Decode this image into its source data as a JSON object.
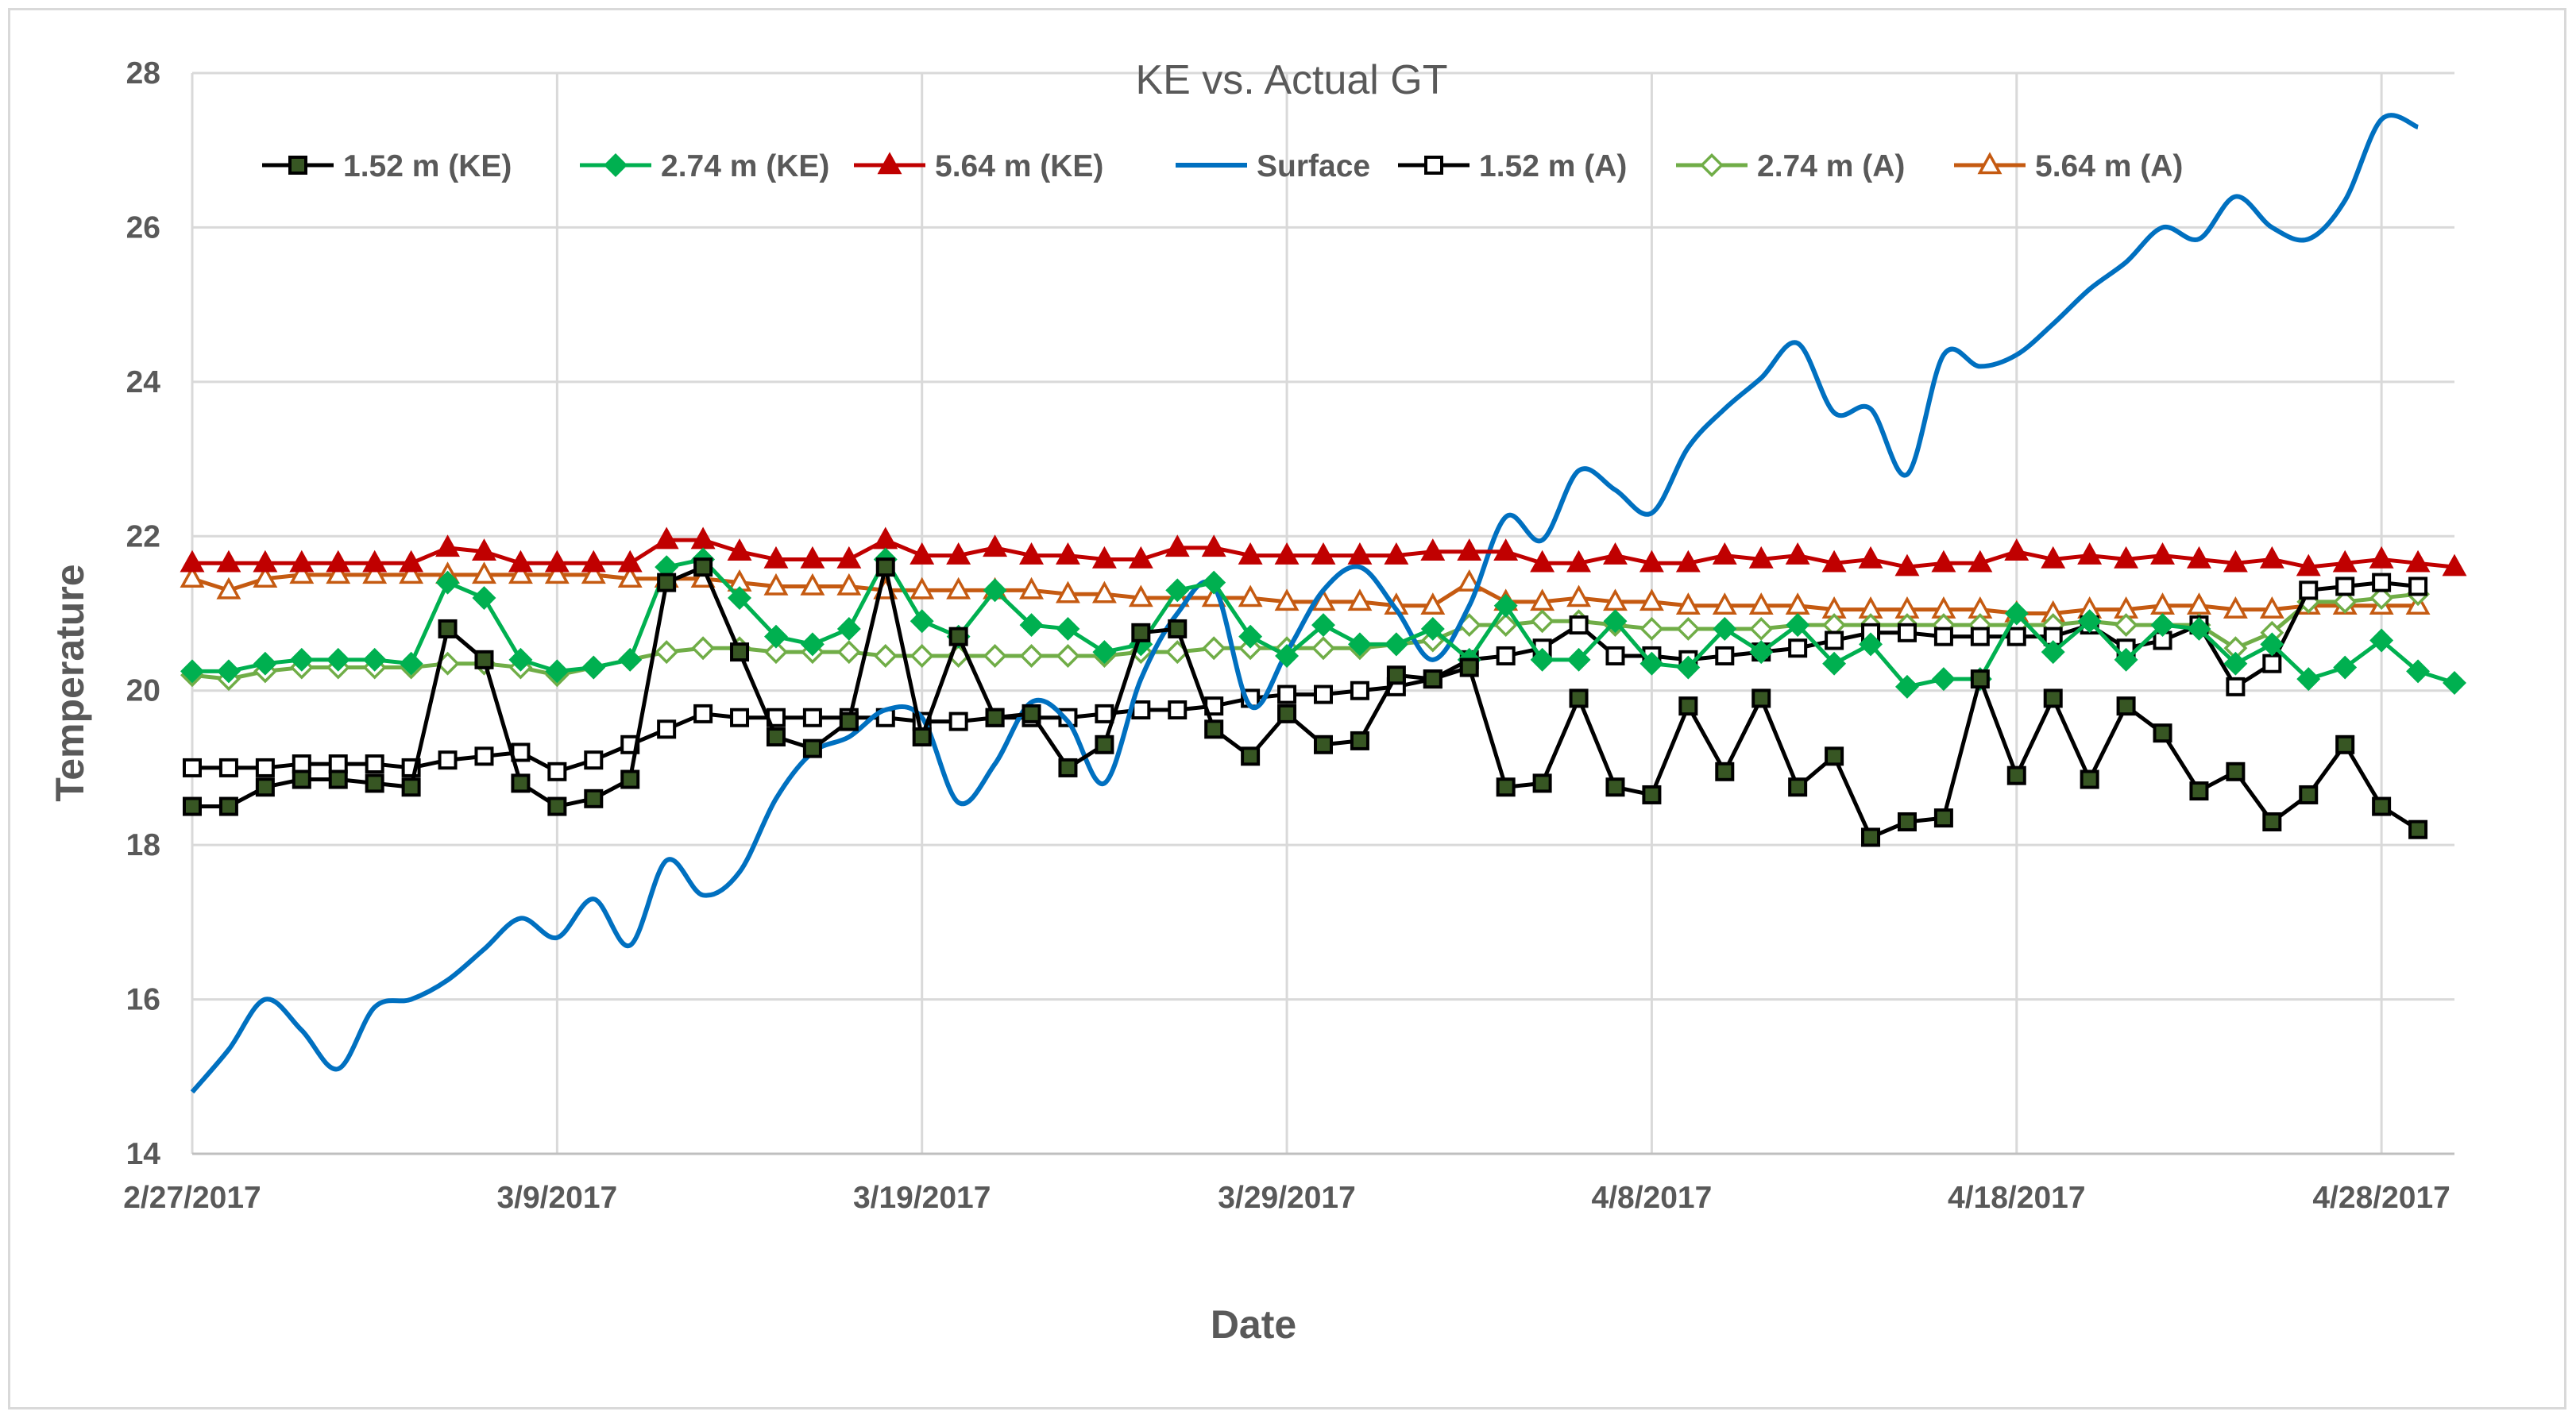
{
  "chart_data": {
    "type": "line",
    "title": "KE vs. Actual GT",
    "xlabel": "Date",
    "ylabel": "Temperature",
    "ylim": [
      14,
      28
    ],
    "xlim": [
      0,
      62
    ],
    "yticks": [
      "14",
      "16",
      "18",
      "20",
      "22",
      "24",
      "26",
      "28"
    ],
    "yticks_values": [
      14,
      16,
      18,
      20,
      22,
      24,
      26,
      28
    ],
    "xticks": [
      "2/27/2017",
      "3/9/2017",
      "3/19/2017",
      "3/29/2017",
      "4/8/2017",
      "4/18/2017",
      "4/28/2017"
    ],
    "xticks_values": [
      0,
      10,
      20,
      30,
      40,
      50,
      60
    ],
    "grid": true,
    "legend_position": "top",
    "colors": {
      "black": "#000000",
      "green": "#00b050",
      "red": "#c00000",
      "blue": "#0070c0",
      "light_green": "#70ad47",
      "brown": "#c55a11",
      "grid": "#d9d9d9",
      "text": "#595959",
      "marker_fill_black": "#375623"
    },
    "series": [
      {
        "name": "1.52 m (KE)",
        "marker": "square-filled",
        "color": "#000000",
        "values": [
          18.5,
          18.5,
          18.75,
          18.85,
          18.85,
          18.8,
          18.75,
          20.8,
          20.4,
          18.8,
          18.5,
          18.6,
          18.85,
          21.4,
          21.6,
          20.5,
          19.4,
          19.25,
          19.6,
          21.6,
          19.4,
          20.7,
          19.65,
          19.7,
          19.0,
          19.3,
          20.75,
          20.8,
          19.5,
          19.15,
          19.7,
          19.3,
          19.35,
          20.2,
          20.15,
          20.3,
          18.75,
          18.8,
          19.9,
          18.75,
          18.65,
          19.8,
          18.95,
          19.9,
          18.75,
          19.15,
          18.1,
          18.3,
          18.35,
          20.15,
          18.9,
          19.9,
          18.85,
          19.8,
          19.45,
          18.7,
          18.95,
          18.3,
          18.65,
          19.3,
          18.5,
          18.2
        ]
      },
      {
        "name": "2.74 m (KE)",
        "marker": "diamond-filled",
        "color": "#00b050",
        "values": [
          20.25,
          20.25,
          20.35,
          20.4,
          20.4,
          20.4,
          20.35,
          21.4,
          21.2,
          20.4,
          20.25,
          20.3,
          20.4,
          21.6,
          21.7,
          21.2,
          20.7,
          20.6,
          20.8,
          21.7,
          20.9,
          20.7,
          21.3,
          20.85,
          20.8,
          20.5,
          20.6,
          21.3,
          21.4,
          20.7,
          20.45,
          20.85,
          20.6,
          20.6,
          20.8,
          20.4,
          21.1,
          20.4,
          20.4,
          20.9,
          20.35,
          20.3,
          20.8,
          20.5,
          20.85,
          20.35,
          20.6,
          20.05,
          20.15,
          20.15,
          21.0,
          20.5,
          20.9,
          20.4,
          20.85,
          20.8,
          20.35,
          20.6,
          20.15,
          20.3,
          20.65,
          20.25,
          20.1
        ]
      },
      {
        "name": "5.64 m (KE)",
        "marker": "triangle-filled",
        "color": "#c00000",
        "values": [
          21.65,
          21.65,
          21.65,
          21.65,
          21.65,
          21.65,
          21.65,
          21.85,
          21.8,
          21.65,
          21.65,
          21.65,
          21.65,
          21.95,
          21.95,
          21.8,
          21.7,
          21.7,
          21.7,
          21.95,
          21.75,
          21.75,
          21.85,
          21.75,
          21.75,
          21.7,
          21.7,
          21.85,
          21.85,
          21.75,
          21.75,
          21.75,
          21.75,
          21.75,
          21.8,
          21.8,
          21.8,
          21.65,
          21.65,
          21.75,
          21.65,
          21.65,
          21.75,
          21.7,
          21.75,
          21.65,
          21.7,
          21.6,
          21.65,
          21.65,
          21.8,
          21.7,
          21.75,
          21.7,
          21.75,
          21.7,
          21.65,
          21.7,
          21.6,
          21.65,
          21.7,
          21.65,
          21.6
        ]
      },
      {
        "name": "Surface",
        "marker": "none",
        "color": "#0070c0",
        "values": [
          14.8,
          15.35,
          16.0,
          15.6,
          15.1,
          15.9,
          16.0,
          16.25,
          16.65,
          17.05,
          16.8,
          17.3,
          16.7,
          17.8,
          17.35,
          17.65,
          18.6,
          19.2,
          19.4,
          19.75,
          19.65,
          18.55,
          19.05,
          19.85,
          19.6,
          18.8,
          20.15,
          21.0,
          21.35,
          19.8,
          20.5,
          21.3,
          21.6,
          21.05,
          20.4,
          21.1,
          22.25,
          21.95,
          22.85,
          22.6,
          22.3,
          23.15,
          23.65,
          24.05,
          24.5,
          23.6,
          23.65,
          22.8,
          24.35,
          24.2,
          24.35,
          24.75,
          25.2,
          25.55,
          26.0,
          25.85,
          26.4,
          26.0,
          25.85,
          26.35,
          27.4,
          27.3
        ]
      },
      {
        "name": "1.52 m (A)",
        "marker": "square-open",
        "color": "#000000",
        "values": [
          19.0,
          19.0,
          19.0,
          19.05,
          19.05,
          19.05,
          19.0,
          19.1,
          19.15,
          19.2,
          18.95,
          19.1,
          19.3,
          19.5,
          19.7,
          19.65,
          19.65,
          19.65,
          19.65,
          19.65,
          19.6,
          19.6,
          19.65,
          19.65,
          19.65,
          19.7,
          19.75,
          19.75,
          19.8,
          19.9,
          19.95,
          19.95,
          20.0,
          20.05,
          20.15,
          20.4,
          20.45,
          20.55,
          20.85,
          20.45,
          20.45,
          20.4,
          20.45,
          20.5,
          20.55,
          20.65,
          20.75,
          20.75,
          20.7,
          20.7,
          20.7,
          20.7,
          20.85,
          20.55,
          20.65,
          20.85,
          20.05,
          20.35,
          21.3,
          21.35,
          21.4,
          21.35
        ]
      },
      {
        "name": "2.74 m (A)",
        "marker": "diamond-open",
        "color": "#70ad47",
        "values": [
          20.2,
          20.15,
          20.25,
          20.3,
          20.3,
          20.3,
          20.3,
          20.35,
          20.35,
          20.3,
          20.2,
          20.3,
          20.4,
          20.5,
          20.55,
          20.55,
          20.5,
          20.5,
          20.5,
          20.45,
          20.45,
          20.45,
          20.45,
          20.45,
          20.45,
          20.45,
          20.5,
          20.5,
          20.55,
          20.55,
          20.55,
          20.55,
          20.55,
          20.6,
          20.65,
          20.85,
          20.85,
          20.9,
          20.9,
          20.85,
          20.8,
          20.8,
          20.8,
          20.8,
          20.85,
          20.85,
          20.85,
          20.85,
          20.85,
          20.85,
          20.85,
          20.85,
          20.9,
          20.85,
          20.85,
          20.85,
          20.55,
          20.75,
          21.15,
          21.15,
          21.2,
          21.25
        ]
      },
      {
        "name": "5.64 m (A)",
        "marker": "triangle-open",
        "color": "#c55a11",
        "values": [
          21.45,
          21.3,
          21.45,
          21.5,
          21.5,
          21.5,
          21.5,
          21.5,
          21.5,
          21.5,
          21.5,
          21.5,
          21.45,
          21.45,
          21.45,
          21.4,
          21.35,
          21.35,
          21.35,
          21.3,
          21.3,
          21.3,
          21.3,
          21.3,
          21.25,
          21.25,
          21.2,
          21.2,
          21.2,
          21.2,
          21.15,
          21.15,
          21.15,
          21.1,
          21.1,
          21.4,
          21.15,
          21.15,
          21.2,
          21.15,
          21.15,
          21.1,
          21.1,
          21.1,
          21.1,
          21.05,
          21.05,
          21.05,
          21.05,
          21.05,
          21.0,
          21.0,
          21.05,
          21.05,
          21.1,
          21.1,
          21.05,
          21.05,
          21.1,
          21.1,
          21.1,
          21.1
        ]
      }
    ]
  }
}
